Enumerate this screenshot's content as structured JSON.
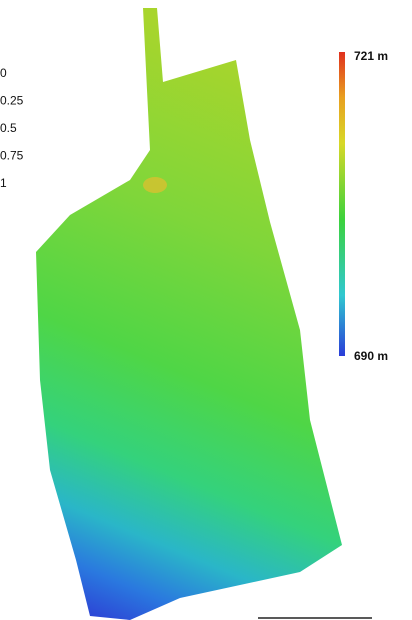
{
  "legend_labels": [
    "0",
    "0.25",
    "0.5",
    "0.75",
    "1"
  ],
  "colorbar": {
    "max_label": "721 m",
    "min_label": "690 m"
  }
}
